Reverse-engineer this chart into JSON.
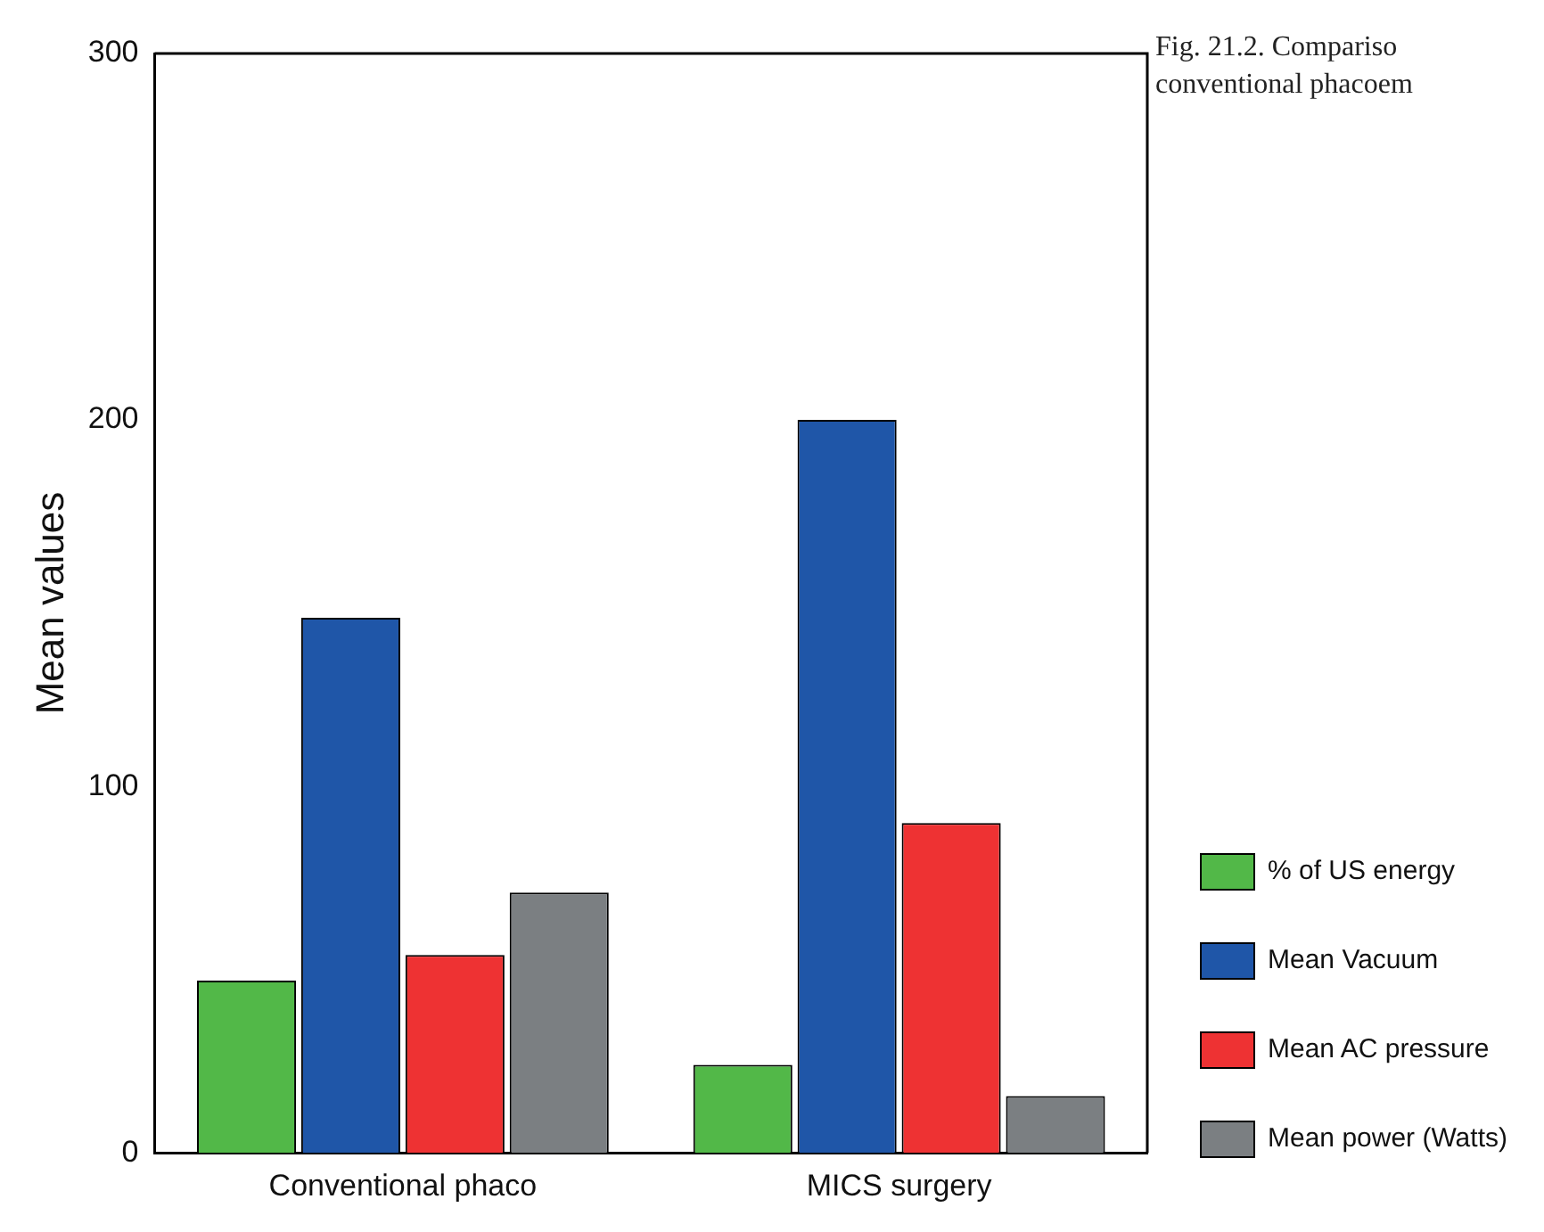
{
  "chart_data": {
    "type": "bar",
    "ylabel": "Mean values",
    "categories": [
      "Conventional phaco",
      "MICS surgery"
    ],
    "series": [
      {
        "name": "% of US energy",
        "color": "#52b848",
        "values": [
          47,
          24
        ]
      },
      {
        "name": "Mean Vacuum",
        "color": "#1f56a8",
        "values": [
          146,
          200
        ]
      },
      {
        "name": "Mean AC pressure",
        "color": "#ee3233",
        "values": [
          54,
          90
        ]
      },
      {
        "name": "Mean power (Watts)",
        "color": "#7b7f82",
        "values": [
          71,
          15.5
        ]
      }
    ],
    "ylim": [
      0,
      300
    ],
    "yticks": [
      0,
      100,
      200,
      300
    ],
    "grid": false,
    "legend": "bottom right",
    "annotations": [
      "Fig. 21.2. Compariso",
      "conventional phacoem"
    ]
  }
}
